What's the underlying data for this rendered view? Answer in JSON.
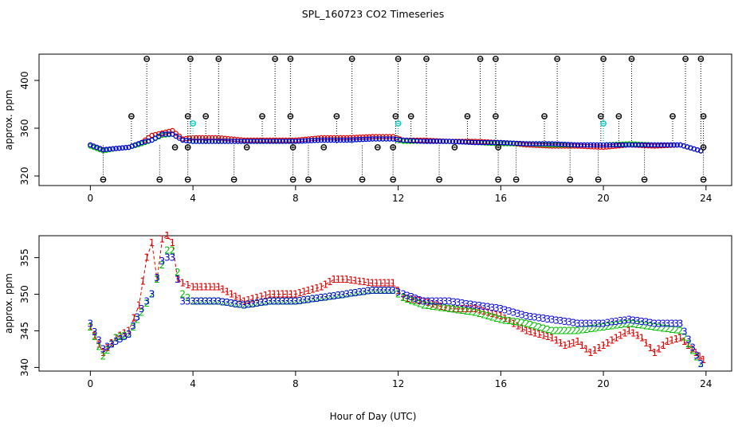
{
  "page": {
    "title": "SPL_160723  CO2 Timeseries",
    "xlabel": "Hour of Day (UTC)"
  },
  "chart_data": [
    {
      "type": "scatter",
      "title": "SPL_160723  CO2 Timeseries",
      "xlabel": "",
      "ylabel": "approx. ppm",
      "xlim": [
        -2,
        25
      ],
      "ylim": [
        312,
        422
      ],
      "xticks": [
        "0",
        "4",
        "8",
        "12",
        "16",
        "20",
        "24"
      ],
      "yticks": [
        "320",
        "360",
        "400"
      ],
      "colors": {
        "flagged": "#000000",
        "cal": "#00c8c8",
        "red": "#e00000",
        "green": "#00c000",
        "blue": "#0000e0"
      },
      "series": [
        {
          "name": "red",
          "x": [
            0,
            0.5,
            1,
            1.5,
            2.0,
            2.4,
            2.8,
            3.2,
            3.6,
            4,
            5,
            6,
            7,
            8,
            9,
            10,
            11,
            11.8,
            12.2,
            13,
            14,
            15,
            16,
            17,
            18,
            19,
            20,
            21,
            22,
            23,
            23.8
          ],
          "values": [
            346,
            342,
            343,
            344,
            348,
            354,
            356,
            358,
            351,
            352,
            352,
            350,
            350,
            350,
            352,
            352,
            353,
            353,
            350,
            350,
            349,
            349,
            348,
            346,
            345,
            345,
            344,
            346,
            345,
            346,
            341
          ]
        },
        {
          "name": "green",
          "x": [
            0,
            0.5,
            1,
            1.5,
            2.0,
            2.4,
            2.8,
            3.2,
            3.6,
            4,
            5,
            6,
            7,
            8,
            9,
            10,
            11,
            11.8,
            12.2,
            13,
            14,
            15,
            16,
            17,
            18,
            19,
            20,
            21,
            22,
            23,
            23.8
          ],
          "values": [
            345,
            341,
            343,
            344,
            347,
            350,
            354,
            355,
            350,
            349,
            349,
            349,
            349,
            349,
            350,
            350,
            351,
            351,
            349,
            349,
            349,
            348,
            347,
            347,
            346,
            346,
            346,
            347,
            346,
            346,
            341
          ]
        },
        {
          "name": "blue",
          "x": [
            0,
            0.5,
            1,
            1.5,
            2.0,
            2.4,
            2.8,
            3.2,
            3.6,
            4,
            5,
            6,
            7,
            8,
            9,
            10,
            11,
            11.8,
            12.2,
            13,
            14,
            15,
            16,
            17,
            18,
            19,
            20,
            21,
            22,
            23,
            23.8
          ],
          "values": [
            346,
            342,
            343,
            344,
            348,
            350,
            355,
            355,
            350,
            349,
            349,
            349,
            349,
            349,
            350,
            350,
            351,
            351,
            350,
            349,
            349,
            348,
            348,
            347,
            347,
            346,
            346,
            346,
            346,
            346,
            341
          ]
        },
        {
          "name": "flagged-high",
          "x": [
            2.2,
            3.9,
            5.0,
            7.2,
            7.8,
            10.2,
            12.0,
            13.1,
            15.2,
            15.8,
            18.2,
            20.0,
            21.1,
            23.2,
            23.8
          ],
          "values": [
            418,
            418,
            418,
            418,
            418,
            418,
            418,
            418,
            418,
            418,
            418,
            418,
            418,
            418,
            418
          ]
        },
        {
          "name": "flagged-mid",
          "x": [
            1.6,
            3.8,
            4.5,
            6.7,
            7.8,
            9.6,
            11.9,
            12.5,
            14.7,
            15.8,
            17.7,
            19.9,
            20.6,
            22.7,
            23.9
          ],
          "values": [
            370,
            370,
            370,
            370,
            370,
            370,
            370,
            370,
            370,
            370,
            370,
            370,
            370,
            370,
            370
          ]
        },
        {
          "name": "flagged-low",
          "x": [
            0.5,
            2.7,
            3.8,
            5.6,
            7.9,
            8.5,
            10.6,
            11.8,
            13.6,
            15.9,
            16.6,
            18.7,
            19.8,
            21.6,
            23.9
          ],
          "values": [
            317,
            317,
            317,
            317,
            317,
            317,
            317,
            317,
            317,
            317,
            317,
            317,
            317,
            317,
            317
          ]
        },
        {
          "name": "flagged-near",
          "x": [
            3.3,
            3.8,
            6.1,
            7.9,
            9.1,
            11.2,
            11.8,
            14.2,
            15.9,
            23.9
          ],
          "values": [
            344,
            344,
            344,
            344,
            344,
            344,
            344,
            344,
            344,
            344
          ]
        },
        {
          "name": "cal",
          "x": [
            4.0,
            12.0,
            20.0
          ],
          "values": [
            364,
            364,
            364
          ]
        }
      ]
    },
    {
      "type": "scatter",
      "title": "",
      "xlabel": "Hour of Day (UTC)",
      "ylabel": "approx. ppm",
      "xlim": [
        -2,
        25
      ],
      "ylim": [
        339.5,
        358
      ],
      "xticks": [
        "0",
        "4",
        "8",
        "12",
        "16",
        "20",
        "24"
      ],
      "yticks": [
        "340",
        "345",
        "350",
        "355"
      ],
      "markers": {
        "red": "1",
        "green": "2",
        "blue": "3"
      },
      "series": [
        {
          "name": "1",
          "color": "#e00000",
          "x": [
            0,
            0.5,
            1,
            1.5,
            1.9,
            2.2,
            2.4,
            2.6,
            2.8,
            3.0,
            3.2,
            3.4,
            3.6,
            4,
            5,
            6,
            7,
            8,
            9,
            9.5,
            10,
            11,
            11.8,
            12.2,
            13,
            14,
            15,
            16,
            17,
            18,
            18.5,
            19,
            19.5,
            20,
            21,
            21.5,
            22,
            22.5,
            23,
            23.6,
            23.9
          ],
          "values": [
            345.5,
            342,
            344,
            345,
            348.5,
            355,
            357,
            352,
            357.5,
            358,
            357,
            352,
            351.5,
            351,
            351,
            349,
            350,
            350,
            351,
            352,
            352,
            351.5,
            351.5,
            349.5,
            349,
            348,
            348,
            347,
            345,
            344,
            343,
            343.5,
            342,
            343,
            345,
            344,
            342,
            343.5,
            344,
            342,
            341
          ]
        },
        {
          "name": "2",
          "color": "#00c000",
          "x": [
            0,
            0.5,
            1,
            1.5,
            2.0,
            2.4,
            2.8,
            3.0,
            3.2,
            3.6,
            4,
            5,
            6,
            7,
            8,
            9,
            10,
            11,
            11.8,
            12.2,
            13,
            14,
            15,
            16,
            17,
            18,
            19,
            20,
            21,
            22,
            23,
            23.8
          ],
          "values": [
            345.5,
            341.5,
            344,
            344.5,
            347.5,
            350,
            354,
            356,
            356,
            350,
            349,
            349,
            348.5,
            349,
            349,
            349.5,
            350,
            350.5,
            350.5,
            349.5,
            348.5,
            348,
            347.5,
            346.5,
            346,
            345,
            345,
            345.5,
            346,
            345.5,
            345,
            340.5
          ]
        },
        {
          "name": "3",
          "color": "#0000e0",
          "x": [
            0,
            0.5,
            1,
            1.5,
            2.0,
            2.4,
            2.8,
            3.0,
            3.2,
            3.6,
            4,
            5,
            6,
            7,
            8,
            9,
            10,
            11,
            11.8,
            12.2,
            13,
            14,
            15,
            16,
            17,
            18,
            19,
            20,
            21,
            22,
            23,
            23.8
          ],
          "values": [
            346,
            342.5,
            343.5,
            344.5,
            348,
            350,
            354.5,
            355,
            355,
            349,
            349,
            349,
            348.5,
            349,
            349,
            349.5,
            350,
            350.5,
            350.5,
            350,
            349,
            349,
            348.5,
            348,
            347,
            346.5,
            346,
            346,
            346.5,
            346,
            346,
            340.5
          ]
        }
      ]
    }
  ]
}
